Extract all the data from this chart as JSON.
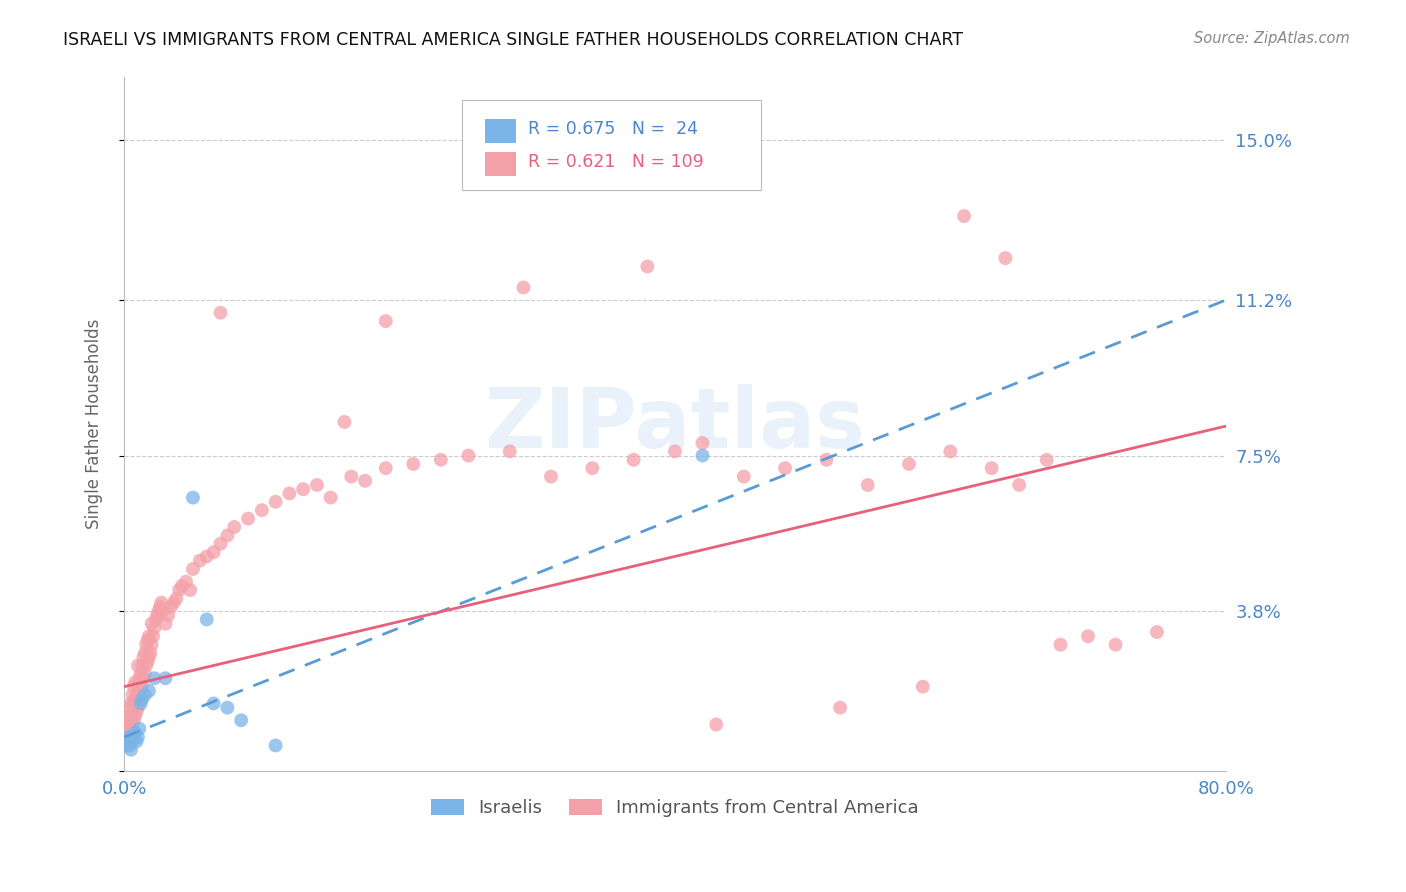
{
  "title": "ISRAELI VS IMMIGRANTS FROM CENTRAL AMERICA SINGLE FATHER HOUSEHOLDS CORRELATION CHART",
  "source": "Source: ZipAtlas.com",
  "ylabel": "Single Father Households",
  "xlim": [
    0.0,
    0.8
  ],
  "ylim": [
    0.0,
    0.165
  ],
  "yticks": [
    0.0,
    0.038,
    0.075,
    0.112,
    0.15
  ],
  "ytick_labels": [
    "",
    "3.8%",
    "7.5%",
    "11.2%",
    "15.0%"
  ],
  "israelis_color": "#7ab4e8",
  "immigrants_color": "#f4a0a8",
  "israeli_line_color": "#5b9bd5",
  "immigrant_line_color": "#e8607a",
  "grid_color": "#cccccc",
  "watermark": "ZIPatlas",
  "background_color": "#ffffff",
  "israeli_x": [
    0.001,
    0.002,
    0.003,
    0.004,
    0.005,
    0.006,
    0.007,
    0.008,
    0.009,
    0.01,
    0.011,
    0.012,
    0.013,
    0.015,
    0.018,
    0.022,
    0.03,
    0.05,
    0.06,
    0.065,
    0.075,
    0.085,
    0.11,
    0.42
  ],
  "israeli_y": [
    0.006,
    0.007,
    0.008,
    0.006,
    0.005,
    0.007,
    0.008,
    0.009,
    0.007,
    0.008,
    0.01,
    0.016,
    0.017,
    0.018,
    0.019,
    0.022,
    0.022,
    0.065,
    0.036,
    0.016,
    0.015,
    0.012,
    0.006,
    0.075
  ],
  "immigrant_x": [
    0.001,
    0.002,
    0.002,
    0.003,
    0.003,
    0.004,
    0.004,
    0.005,
    0.005,
    0.005,
    0.006,
    0.006,
    0.006,
    0.007,
    0.007,
    0.007,
    0.008,
    0.008,
    0.008,
    0.009,
    0.009,
    0.01,
    0.01,
    0.01,
    0.011,
    0.011,
    0.012,
    0.012,
    0.013,
    0.013,
    0.014,
    0.014,
    0.015,
    0.015,
    0.016,
    0.016,
    0.017,
    0.017,
    0.018,
    0.018,
    0.019,
    0.02,
    0.02,
    0.021,
    0.022,
    0.023,
    0.024,
    0.025,
    0.026,
    0.027,
    0.028,
    0.03,
    0.032,
    0.034,
    0.036,
    0.038,
    0.04,
    0.042,
    0.045,
    0.048,
    0.05,
    0.055,
    0.06,
    0.065,
    0.07,
    0.075,
    0.08,
    0.09,
    0.1,
    0.11,
    0.12,
    0.13,
    0.14,
    0.15,
    0.165,
    0.175,
    0.19,
    0.21,
    0.23,
    0.25,
    0.28,
    0.31,
    0.34,
    0.37,
    0.4,
    0.42,
    0.45,
    0.48,
    0.51,
    0.54,
    0.57,
    0.6,
    0.63,
    0.65,
    0.67,
    0.68,
    0.7,
    0.72,
    0.75,
    0.43,
    0.52,
    0.58,
    0.61,
    0.64,
    0.38,
    0.29,
    0.19,
    0.16,
    0.07
  ],
  "immigrant_y": [
    0.01,
    0.008,
    0.012,
    0.009,
    0.013,
    0.01,
    0.015,
    0.008,
    0.011,
    0.016,
    0.01,
    0.013,
    0.018,
    0.012,
    0.016,
    0.02,
    0.013,
    0.017,
    0.021,
    0.014,
    0.018,
    0.015,
    0.02,
    0.025,
    0.017,
    0.022,
    0.018,
    0.023,
    0.02,
    0.025,
    0.022,
    0.027,
    0.023,
    0.028,
    0.025,
    0.03,
    0.026,
    0.031,
    0.027,
    0.032,
    0.028,
    0.03,
    0.035,
    0.032,
    0.034,
    0.036,
    0.037,
    0.038,
    0.039,
    0.04,
    0.038,
    0.035,
    0.037,
    0.039,
    0.04,
    0.041,
    0.043,
    0.044,
    0.045,
    0.043,
    0.048,
    0.05,
    0.051,
    0.052,
    0.054,
    0.056,
    0.058,
    0.06,
    0.062,
    0.064,
    0.066,
    0.067,
    0.068,
    0.065,
    0.07,
    0.069,
    0.072,
    0.073,
    0.074,
    0.075,
    0.076,
    0.07,
    0.072,
    0.074,
    0.076,
    0.078,
    0.07,
    0.072,
    0.074,
    0.068,
    0.073,
    0.076,
    0.072,
    0.068,
    0.074,
    0.03,
    0.032,
    0.03,
    0.033,
    0.011,
    0.015,
    0.02,
    0.132,
    0.122,
    0.12,
    0.115,
    0.107,
    0.083,
    0.109
  ]
}
